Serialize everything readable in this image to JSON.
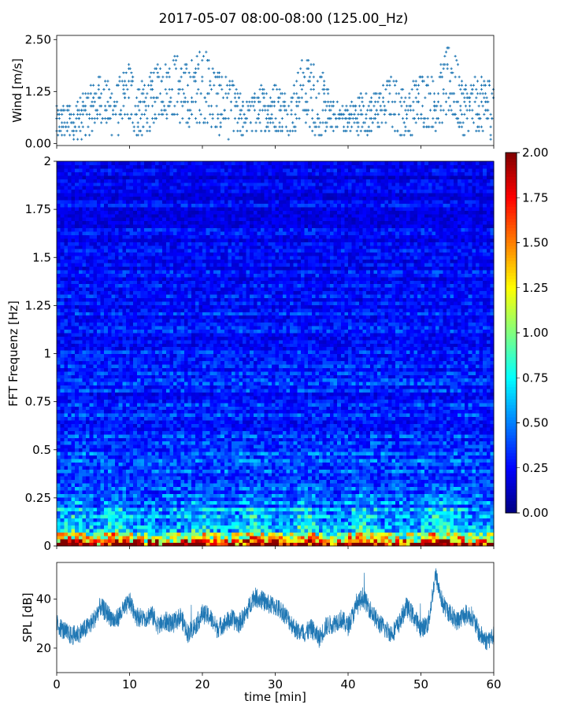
{
  "figure": {
    "title": "2017-05-07 08:00-08:00 (125.00_Hz)"
  },
  "chart_data": [
    {
      "panel": "wind",
      "type": "scatter",
      "ylabel": "Wind [m/s]",
      "xlabel": "",
      "xlim": [
        0,
        60
      ],
      "ylim": [
        -0.05,
        2.6
      ],
      "yticks": [
        0.0,
        1.25,
        2.5
      ],
      "ytick_labels": [
        "0.00",
        "1.25",
        "2.50"
      ],
      "grid": false,
      "marker": "+",
      "color": "#1f77b4",
      "quantization_step": 0.1,
      "envelope": {
        "t_min": [
          0,
          2,
          4,
          6,
          8,
          10,
          12,
          14,
          16,
          18,
          20,
          22,
          24,
          26,
          28,
          30,
          32,
          34,
          36,
          38,
          40,
          42,
          44,
          46,
          48,
          50,
          52,
          54,
          56,
          58,
          60
        ],
        "upper_m_s": [
          0.9,
          1.0,
          1.3,
          1.7,
          1.4,
          2.0,
          1.4,
          2.0,
          2.2,
          1.9,
          2.4,
          1.9,
          1.5,
          1.0,
          1.4,
          1.5,
          1.2,
          2.2,
          1.9,
          1.0,
          0.9,
          1.3,
          1.3,
          1.7,
          1.2,
          1.8,
          1.6,
          2.5,
          1.5,
          1.6,
          1.7
        ],
        "lower_m_s": [
          0.1,
          0.1,
          0.1,
          0.5,
          0.1,
          0.2,
          0.1,
          0.6,
          0.6,
          0.3,
          0.5,
          0.2,
          0.1,
          0.1,
          0.3,
          0.3,
          0.2,
          0.5,
          0.1,
          0.3,
          0.3,
          0.2,
          0.3,
          0.3,
          0.1,
          0.4,
          0.3,
          0.6,
          0.1,
          0.3,
          0.1
        ]
      }
    },
    {
      "panel": "spectrogram",
      "type": "heatmap",
      "ylabel": "FFT Frequenz [Hz]",
      "xlabel": "",
      "xlim": [
        0,
        60
      ],
      "ylim": [
        0,
        2
      ],
      "yticks": [
        0,
        0.25,
        0.5,
        0.75,
        1,
        1.25,
        1.5,
        1.75,
        2
      ],
      "ytick_labels": [
        "0",
        "0.25",
        "0.5",
        "0.75",
        "1",
        "1.25",
        "1.5",
        "1.75",
        "2"
      ],
      "colormap": "jet",
      "color_range": [
        0.0,
        2.0
      ],
      "colorbar_ticks": [
        0.0,
        0.25,
        0.5,
        0.75,
        1.0,
        1.25,
        1.5,
        1.75,
        2.0
      ],
      "colorbar_labels": [
        "0.00",
        "0.25",
        "0.50",
        "0.75",
        "1.00",
        "1.25",
        "1.50",
        "1.75",
        "2.00"
      ],
      "typical_level_by_frequency": {
        "freq_hz": [
          0.0,
          0.02,
          0.05,
          0.1,
          0.2,
          0.3,
          0.5,
          0.75,
          1.0,
          1.5,
          2.0
        ],
        "level": [
          1.9,
          1.5,
          0.9,
          0.55,
          0.45,
          0.4,
          0.35,
          0.3,
          0.3,
          0.25,
          0.2
        ]
      },
      "low_frequency_hotspots_min": [
        2,
        8,
        20,
        27,
        34,
        42,
        52,
        54
      ],
      "resolution": {
        "time_bins": 120,
        "freq_bins": 110
      }
    },
    {
      "panel": "spl",
      "type": "line",
      "ylabel": "SPL [dB]",
      "xlabel": "time [min]",
      "xlim": [
        0,
        60
      ],
      "ylim": [
        10,
        55
      ],
      "yticks": [
        20,
        40
      ],
      "ytick_labels": [
        "20",
        "40"
      ],
      "xticks": [
        0,
        10,
        20,
        30,
        40,
        50,
        60
      ],
      "xtick_labels": [
        "0",
        "10",
        "20",
        "30",
        "40",
        "50",
        "60"
      ],
      "color": "#1f77b4",
      "series": [
        {
          "x": [
            0,
            1,
            2,
            3,
            4,
            5,
            6,
            7,
            8,
            9,
            10,
            11,
            12,
            13,
            14,
            15,
            16,
            17,
            18,
            19,
            20,
            21,
            22,
            23,
            24,
            25,
            26,
            27,
            28,
            29,
            30,
            31,
            32,
            33,
            34,
            35,
            36,
            37,
            38,
            39,
            40,
            41,
            42,
            43,
            44,
            45,
            46,
            47,
            48,
            49,
            50,
            51,
            52,
            53,
            54,
            55,
            56,
            57,
            58,
            59,
            60
          ],
          "y": [
            30,
            27,
            25,
            26,
            28,
            31,
            37,
            34,
            31,
            35,
            39,
            33,
            32,
            34,
            29,
            31,
            30,
            33,
            26,
            29,
            34,
            33,
            28,
            30,
            32,
            30,
            34,
            41,
            40,
            38,
            37,
            35,
            31,
            27,
            26,
            28,
            24,
            29,
            30,
            32,
            29,
            36,
            41,
            36,
            31,
            28,
            26,
            30,
            37,
            33,
            28,
            30,
            50,
            38,
            34,
            31,
            34,
            33,
            26,
            23,
            25
          ],
          "band_halfwidth_db": 4
        }
      ]
    }
  ]
}
